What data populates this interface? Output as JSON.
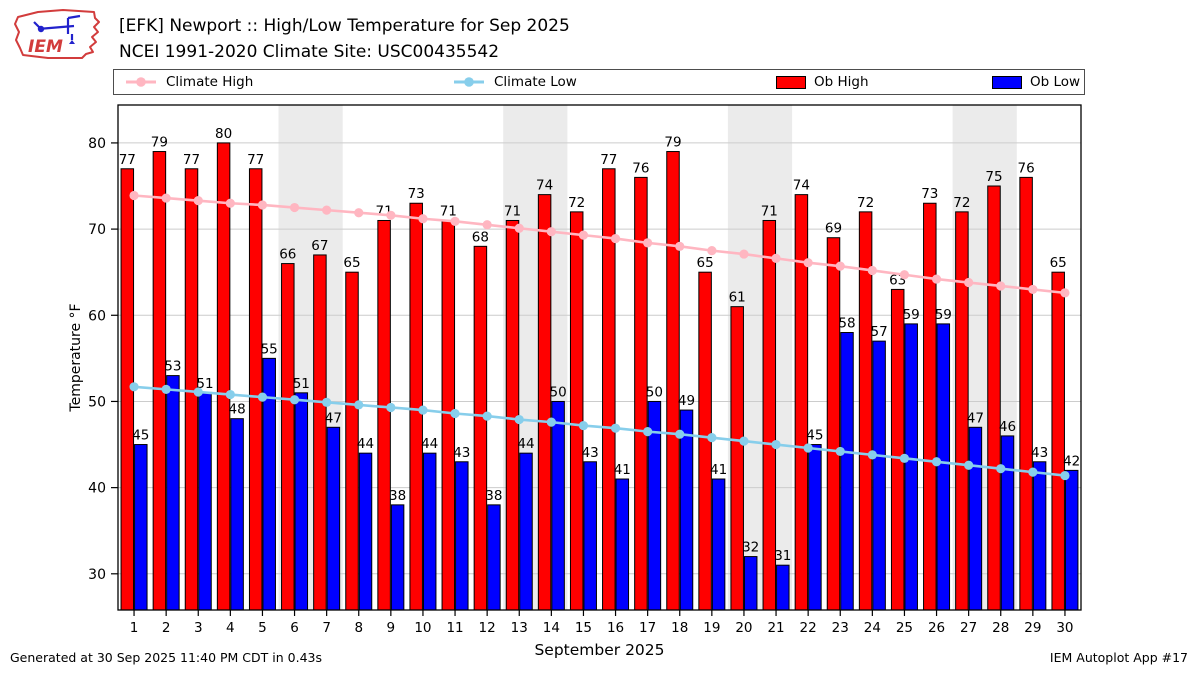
{
  "header": {
    "title_line1": "[EFK] Newport :: High/Low Temperature for Sep 2025",
    "title_line2": "NCEI 1991-2020 Climate Site: USC00435542",
    "logo_text": "IEM"
  },
  "legend": [
    {
      "label": "Climate High",
      "type": "line",
      "color": "#ffb6c1"
    },
    {
      "label": "Climate Low",
      "type": "line",
      "color": "#87ceeb"
    },
    {
      "label": "Ob High",
      "type": "bar",
      "color": "#ff0000"
    },
    {
      "label": "Ob Low",
      "type": "bar",
      "color": "#0000ff"
    }
  ],
  "chart_data": {
    "type": "bar",
    "title": "[EFK] Newport :: High/Low Temperature for Sep 2025",
    "subtitle": "NCEI 1991-2020 Climate Site: USC00435542",
    "xlabel": "September 2025",
    "ylabel": "Temperature °F",
    "x": [
      1,
      2,
      3,
      4,
      5,
      6,
      7,
      8,
      9,
      10,
      11,
      12,
      13,
      14,
      15,
      16,
      17,
      18,
      19,
      20,
      21,
      22,
      23,
      24,
      25,
      26,
      27,
      28,
      29,
      30
    ],
    "yticks": [
      30,
      40,
      50,
      60,
      70,
      80
    ],
    "ylim": [
      25.8,
      84.4
    ],
    "grid": "horizontal",
    "legend_position": "top",
    "weekend_bands": [
      [
        5.5,
        7.5
      ],
      [
        12.5,
        14.5
      ],
      [
        19.5,
        21.5
      ],
      [
        26.5,
        28.5
      ]
    ],
    "band_color": "#ebebeb",
    "grid_color": "#cccccc",
    "series": [
      {
        "name": "Ob High",
        "type": "bar",
        "color": "#ff0000",
        "values": [
          77,
          79,
          77,
          80,
          77,
          66,
          67,
          65,
          71,
          73,
          71,
          68,
          71,
          74,
          72,
          77,
          76,
          79,
          65,
          61,
          71,
          74,
          69,
          72,
          63,
          73,
          72,
          75,
          76,
          65
        ]
      },
      {
        "name": "Ob Low",
        "type": "bar",
        "color": "#0000ff",
        "values": [
          45,
          53,
          51,
          48,
          55,
          51,
          47,
          44,
          38,
          44,
          43,
          38,
          44,
          50,
          43,
          41,
          50,
          49,
          41,
          32,
          31,
          45,
          58,
          57,
          59,
          59,
          47,
          46,
          43,
          42
        ]
      },
      {
        "name": "Climate High",
        "type": "line",
        "color": "#ffb6c1",
        "values": [
          73.9,
          73.6,
          73.3,
          73.0,
          72.8,
          72.5,
          72.2,
          71.9,
          71.6,
          71.2,
          70.9,
          70.5,
          70.1,
          69.7,
          69.3,
          68.9,
          68.4,
          68.0,
          67.5,
          67.1,
          66.6,
          66.1,
          65.7,
          65.2,
          64.7,
          64.2,
          63.8,
          63.4,
          63.0,
          62.6
        ]
      },
      {
        "name": "Climate Low",
        "type": "line",
        "color": "#87ceeb",
        "values": [
          51.7,
          51.4,
          51.1,
          50.8,
          50.5,
          50.2,
          49.9,
          49.6,
          49.3,
          49.0,
          48.6,
          48.3,
          47.9,
          47.6,
          47.2,
          46.9,
          46.5,
          46.2,
          45.8,
          45.4,
          45.0,
          44.6,
          44.2,
          43.8,
          43.4,
          43.0,
          42.6,
          42.2,
          41.8,
          41.4
        ]
      }
    ]
  },
  "footer": {
    "left": "Generated at 30 Sep 2025 11:40 PM CDT in 0.43s",
    "right": "IEM Autoplot App #17"
  }
}
